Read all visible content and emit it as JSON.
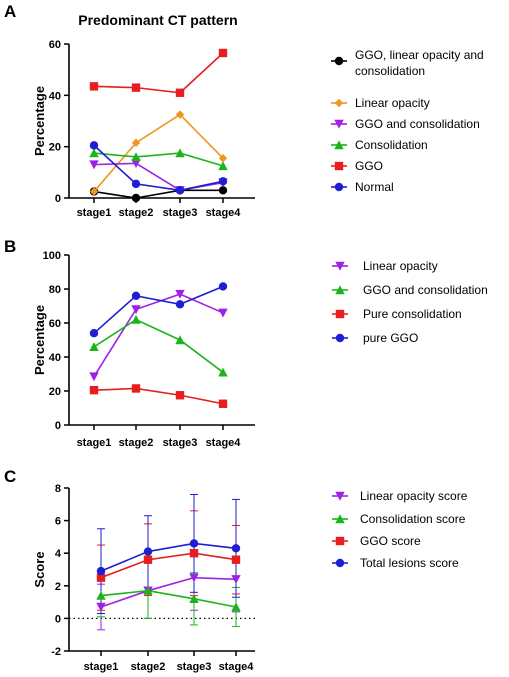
{
  "chart_data": [
    {
      "panel": "A",
      "type": "line",
      "title": "Predominant CT pattern",
      "xlabel": "",
      "ylabel": "Percentage",
      "categories": [
        "stage1",
        "stage2",
        "stage3",
        "stage4"
      ],
      "ylim": [
        0,
        60
      ],
      "yticks": [
        0,
        20,
        40,
        60
      ],
      "grid": false,
      "legend": "right",
      "series": [
        {
          "name": "GGO, linear opacity and consolidation",
          "color": "#000000",
          "marker": "circle",
          "values": [
            2.5,
            0,
            3,
            3
          ]
        },
        {
          "name": "Linear opacity",
          "color": "#f0961e",
          "marker": "diamond",
          "values": [
            2.5,
            21.5,
            32.5,
            15.5
          ]
        },
        {
          "name": "GGO and consolidation",
          "color": "#a020e6",
          "marker": "triangle-down",
          "values": [
            13,
            13.5,
            3,
            6
          ]
        },
        {
          "name": "Consolidation",
          "color": "#1cb41c",
          "marker": "triangle-up",
          "values": [
            17.5,
            16,
            17.5,
            12.5
          ]
        },
        {
          "name": "GGO",
          "color": "#e61e1e",
          "marker": "square",
          "values": [
            43.5,
            43,
            41,
            56.5
          ]
        },
        {
          "name": "Normal",
          "color": "#1e1ed2",
          "marker": "circle",
          "values": [
            20.5,
            5.5,
            3,
            6.5
          ]
        }
      ]
    },
    {
      "panel": "B",
      "type": "line",
      "title": "",
      "xlabel": "",
      "ylabel": "Percentage",
      "categories": [
        "stage1",
        "stage2",
        "stage3",
        "stage4"
      ],
      "ylim": [
        0,
        100
      ],
      "yticks": [
        0,
        20,
        40,
        60,
        80,
        100
      ],
      "grid": false,
      "legend": "right",
      "series": [
        {
          "name": "Linear opacity",
          "color": "#a020e6",
          "marker": "triangle-down",
          "values": [
            28.5,
            68,
            77,
            66
          ]
        },
        {
          "name": "GGO and consolidation",
          "color": "#1cb41c",
          "marker": "triangle-up",
          "values": [
            46,
            62,
            50,
            31
          ]
        },
        {
          "name": "Pure consolidation",
          "color": "#e61e1e",
          "marker": "square",
          "values": [
            20.5,
            21.5,
            17.5,
            12.5
          ]
        },
        {
          "name": "pure GGO",
          "color": "#1e1ed2",
          "marker": "circle",
          "values": [
            54,
            76,
            71,
            81.5
          ]
        }
      ]
    },
    {
      "panel": "C",
      "type": "line",
      "title": "",
      "xlabel": "",
      "ylabel": "Score",
      "categories": [
        "stage1",
        "stage2",
        "stage3",
        "stage4"
      ],
      "ylim": [
        -2,
        8
      ],
      "yticks": [
        -2,
        0,
        2,
        4,
        6,
        8
      ],
      "grid": false,
      "reference_line": 0,
      "legend": "right",
      "series": [
        {
          "name": "Linear opacity score",
          "color": "#a020e6",
          "marker": "triangle-down",
          "values": [
            0.7,
            1.7,
            2.5,
            2.4
          ],
          "error": [
            1.4,
            1.7,
            2.0,
            2.0
          ]
        },
        {
          "name": "Consolidation score",
          "color": "#1cb41c",
          "marker": "triangle-up",
          "values": [
            1.4,
            1.7,
            1.2,
            0.7
          ],
          "error": [
            1.3,
            1.7,
            1.6,
            1.2
          ]
        },
        {
          "name": "GGO score",
          "color": "#e61e1e",
          "marker": "square",
          "values": [
            2.5,
            3.6,
            4.0,
            3.6
          ],
          "error": [
            2.0,
            2.2,
            2.6,
            2.1
          ]
        },
        {
          "name": "Total lesions score",
          "color": "#1e1ed2",
          "marker": "circle",
          "values": [
            2.9,
            4.1,
            4.6,
            4.3
          ],
          "error": [
            2.6,
            2.2,
            3.0,
            3.0
          ]
        }
      ]
    }
  ],
  "panel_labels": [
    "A",
    "B",
    "C"
  ]
}
